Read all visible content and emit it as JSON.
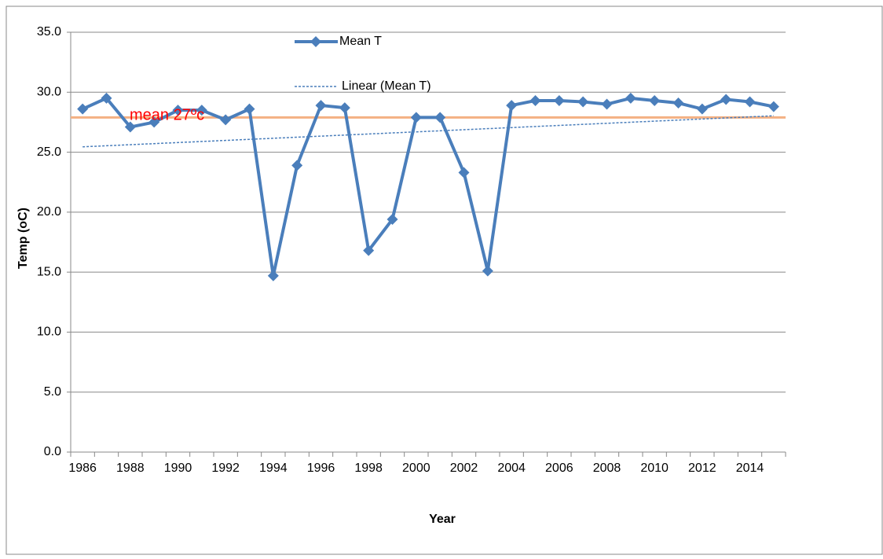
{
  "chart_data": {
    "type": "line",
    "categories": [
      "1986",
      null,
      "1988",
      null,
      "1990",
      null,
      "1992",
      null,
      "1994",
      null,
      "1996",
      null,
      "1998",
      null,
      "2000",
      null,
      "2002",
      null,
      "2004",
      null,
      "2006",
      null,
      "2008",
      null,
      "2010",
      null,
      "2012",
      null,
      "2014",
      null
    ],
    "series": [
      {
        "name": "Mean T",
        "color": "#4a7ebb",
        "values": [
          28.6,
          29.5,
          27.1,
          27.5,
          28.5,
          28.5,
          27.7,
          28.6,
          14.7,
          23.9,
          28.9,
          28.7,
          16.8,
          19.4,
          27.9,
          27.9,
          23.3,
          15.1,
          28.9,
          29.3,
          29.3,
          29.2,
          29.0,
          29.5,
          29.3,
          29.1,
          28.6,
          29.4,
          29.2,
          28.8
        ]
      }
    ],
    "trendline": {
      "name": "Linear (Mean T)",
      "color": "#4a7ebb",
      "kind": "linear"
    },
    "hline": {
      "value": 27.9,
      "color": "#f4b183"
    },
    "annotation": "mean  27ºc",
    "x_label": "Year",
    "y_label": "Temp (oC)",
    "ylim": [
      0,
      35
    ],
    "yticks": [
      {
        "value": 0,
        "label": "0.0"
      },
      {
        "value": 5,
        "label": "5.0"
      },
      {
        "value": 10,
        "label": "10.0"
      },
      {
        "value": 15,
        "label": "15.0"
      },
      {
        "value": 20,
        "label": "20.0"
      },
      {
        "value": 25,
        "label": "25.0"
      },
      {
        "value": 30,
        "label": "30.0"
      },
      {
        "value": 35,
        "label": "35.0"
      }
    ],
    "grid": true,
    "legend": "top"
  }
}
